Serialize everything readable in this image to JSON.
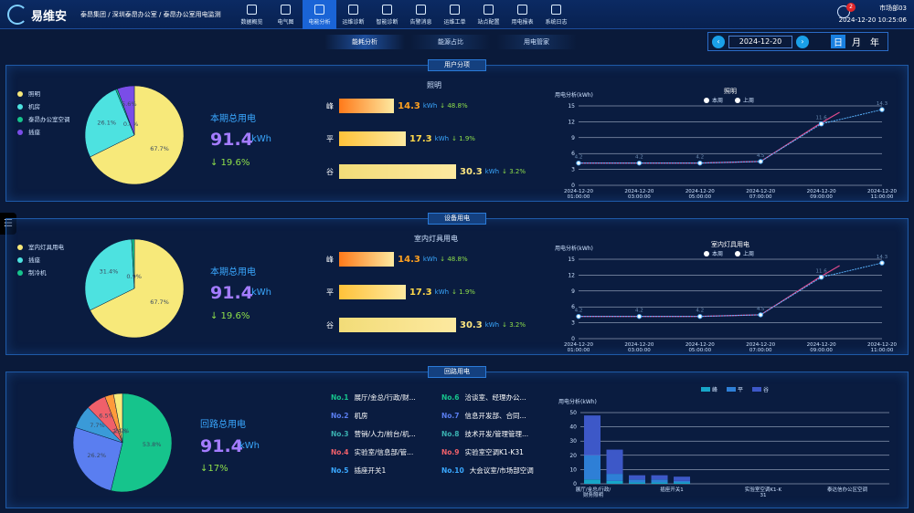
{
  "app": {
    "title": "易维安",
    "breadcrumb": "泰昂集团 / 深圳泰昂办公室 / 泰昂办公室用电监测",
    "user": "市场部03",
    "time": "2024-12-20 10:25:06",
    "badge": "2"
  },
  "nav": [
    {
      "label": "数据概览"
    },
    {
      "label": "电气图"
    },
    {
      "label": "电能分析",
      "active": true
    },
    {
      "label": "运维诊断"
    },
    {
      "label": "智能诊断"
    },
    {
      "label": "告警消息"
    },
    {
      "label": "运维工单"
    },
    {
      "label": "站点配置"
    },
    {
      "label": "用电报表"
    },
    {
      "label": "系统日志"
    }
  ],
  "subtabs": [
    {
      "label": "能耗分析",
      "active": true
    },
    {
      "label": "能源占比"
    },
    {
      "label": "用电管家"
    }
  ],
  "date": {
    "value": "2024-12-20",
    "prev": "‹",
    "next": "›",
    "day": "日",
    "month": "月",
    "year": "年"
  },
  "sidebar_toggle": "☰",
  "panels": [
    {
      "title": "用户分项",
      "legend": [
        {
          "label": "照明",
          "color": "#f7e97a"
        },
        {
          "label": "机房",
          "color": "#4de2e0"
        },
        {
          "label": "泰昂办公室空调",
          "color": "#16c48c"
        },
        {
          "label": "插座",
          "color": "#7a4de8"
        }
      ],
      "pie": [
        {
          "value": 67.7,
          "label": "67.7%",
          "color": "#f7e97a"
        },
        {
          "value": 26.1,
          "label": "26.1%",
          "color": "#4de2e0"
        },
        {
          "value": 0.6,
          "label": "0.6%",
          "color": "#16c48c"
        },
        {
          "value": 5.6,
          "label": "5.6%",
          "color": "#7a4de8"
        }
      ],
      "total_label": "本期总用电",
      "total_value": "91.4",
      "total_unit": "kWh",
      "total_change": "↓ 19.6%",
      "bars_title": "照明",
      "bars": [
        {
          "tag": "峰",
          "value": "14.3",
          "unit": "kWh",
          "change": "↓ 48.8%",
          "frac": 0.47,
          "color": "#ff7a1a",
          "vcolor": "#ffa020"
        },
        {
          "tag": "平",
          "value": "17.3",
          "unit": "kWh",
          "change": "↓ 1.9%",
          "frac": 0.57,
          "color": "#ffc23a",
          "vcolor": "#ffd84a"
        },
        {
          "tag": "谷",
          "value": "30.3",
          "unit": "kWh",
          "change": "↓ 3.2%",
          "frac": 1.0,
          "color": "#f2dc78",
          "vcolor": "#ffe680"
        }
      ],
      "chart_data": {
        "type": "line",
        "title": "照明",
        "ylabel": "用电分析(kWh)",
        "ylim": [
          0,
          15
        ],
        "yticks": [
          0,
          3,
          6,
          9,
          12,
          15
        ],
        "x": [
          "2024-12-20 01:00:00",
          "2024-12-20 03:00:00",
          "2024-12-20 05:00:00",
          "2024-12-20 07:00:00",
          "2024-12-20 09:00:00",
          "2024-12-20 11:00:00"
        ],
        "series": [
          {
            "name": "本周",
            "values": [
              4.2,
              4.2,
              4.2,
              4.5,
              11.6,
              14.3
            ],
            "color": "#e04a8c"
          },
          {
            "name": "上周",
            "values": [
              4.2,
              4.2,
              4.2,
              4.5,
              11.6,
              14.3
            ],
            "color": "#5ab4ff"
          }
        ],
        "point_labels": [
          "4.2",
          "4.2",
          "4.2",
          "4.5",
          "11.6",
          "14.3"
        ]
      }
    },
    {
      "title": "设备用电",
      "legend": [
        {
          "label": "室内灯具用电",
          "color": "#f7e97a"
        },
        {
          "label": "插座",
          "color": "#4de2e0"
        },
        {
          "label": "制冷机",
          "color": "#16c48c"
        }
      ],
      "pie": [
        {
          "value": 67.7,
          "label": "67.7%",
          "color": "#f7e97a"
        },
        {
          "value": 31.4,
          "label": "31.4%",
          "color": "#4de2e0"
        },
        {
          "value": 0.9,
          "label": "0.9%",
          "color": "#16c48c"
        }
      ],
      "total_label": "本期总用电",
      "total_value": "91.4",
      "total_unit": "kWh",
      "total_change": "↓ 19.6%",
      "bars_title": "室内灯具用电",
      "bars": [
        {
          "tag": "峰",
          "value": "14.3",
          "unit": "kWh",
          "change": "↓ 48.8%",
          "frac": 0.47,
          "color": "#ff7a1a",
          "vcolor": "#ffa020"
        },
        {
          "tag": "平",
          "value": "17.3",
          "unit": "kWh",
          "change": "↓ 1.9%",
          "frac": 0.57,
          "color": "#ffc23a",
          "vcolor": "#ffd84a"
        },
        {
          "tag": "谷",
          "value": "30.3",
          "unit": "kWh",
          "change": "↓ 3.2%",
          "frac": 1.0,
          "color": "#f2dc78",
          "vcolor": "#ffe680"
        }
      ],
      "chart_data": {
        "type": "line",
        "title": "室内灯具用电",
        "ylabel": "用电分析(kWh)",
        "ylim": [
          0,
          15
        ],
        "yticks": [
          0,
          3,
          6,
          9,
          12,
          15
        ],
        "x": [
          "2024-12-20 01:00:00",
          "2024-12-20 03:00:00",
          "2024-12-20 05:00:00",
          "2024-12-20 07:00:00",
          "2024-12-20 09:00:00",
          "2024-12-20 11:00:00"
        ],
        "series": [
          {
            "name": "本周",
            "values": [
              4.2,
              4.2,
              4.2,
              4.5,
              11.6,
              14.3
            ],
            "color": "#e04a8c"
          },
          {
            "name": "上周",
            "values": [
              4.2,
              4.2,
              4.2,
              4.5,
              11.6,
              14.3
            ],
            "color": "#5ab4ff"
          }
        ],
        "point_labels": [
          "4.2",
          "4.2",
          "4.2",
          "4.5",
          "11.6",
          "14.3"
        ]
      }
    },
    {
      "title": "回路用电",
      "pie": [
        {
          "value": 53.8,
          "label": "53.8%",
          "color": "#16c48c"
        },
        {
          "value": 26.2,
          "label": "26.2%",
          "color": "#5a7ef0"
        },
        {
          "value": 7.7,
          "label": "7.7%",
          "color": "#3a9ad8"
        },
        {
          "value": 6.5,
          "label": "6.5%",
          "color": "#f0606a"
        },
        {
          "value": 2.9,
          "label": "2.9%",
          "color": "#ff9a3a"
        },
        {
          "value": 2.9,
          "label": "2.9%",
          "color": "#f7e97a"
        }
      ],
      "total_label": "回路总用电",
      "total_value": "91.4",
      "total_unit": "kWh",
      "total_change": "↓17%",
      "circuits": [
        {
          "no": "No.1",
          "name": "展厅/金总/行政/财...",
          "color": "#16c48c"
        },
        {
          "no": "No.2",
          "name": "机房",
          "color": "#5a7ef0"
        },
        {
          "no": "No.3",
          "name": "营销/人力/前台/机...",
          "color": "#3ab0b0"
        },
        {
          "no": "No.4",
          "name": "实验室/信息部/管...",
          "color": "#f0606a"
        },
        {
          "no": "No.5",
          "name": "插座开关1",
          "color": "#3aa8ff"
        },
        {
          "no": "No.6",
          "name": "洽谈室、经理办公...",
          "color": "#16c48c"
        },
        {
          "no": "No.7",
          "name": "信息开发部、合同...",
          "color": "#5a7ef0"
        },
        {
          "no": "No.8",
          "name": "技术开发/管理管理...",
          "color": "#3ab0b0"
        },
        {
          "no": "No.9",
          "name": "实验室空调K1-K31",
          "color": "#f0606a"
        },
        {
          "no": "No.10",
          "name": "大会议室/市场部空调",
          "color": "#3aa8ff"
        }
      ],
      "chart_data": {
        "type": "bar",
        "ylabel": "用电分析(kWh)",
        "ylim": [
          0,
          50
        ],
        "yticks": [
          0,
          10,
          20,
          30,
          40,
          50
        ],
        "categories": [
          "展厅/金总/行政/财务照明",
          "",
          "插座开关1",
          "",
          "实验室空调K1-K31",
          "",
          "泰达信办公区空调",
          ""
        ],
        "x_labels": [
          "展厅/金总/行政/财务照明",
          "插座开关1",
          "实验室空调K1-K31",
          "泰达信办公区空调"
        ],
        "series": [
          {
            "name": "峰",
            "values": [
              3,
              2,
              1,
              1,
              1,
              0,
              0,
              0
            ],
            "color": "#17a6c8"
          },
          {
            "name": "平",
            "values": [
              17,
              5,
              2,
              2,
              1,
              0,
              0,
              0
            ],
            "color": "#2e7fd6"
          },
          {
            "name": "谷",
            "values": [
              28,
              17,
              3,
              3,
              3,
              0,
              0,
              0
            ],
            "color": "#3d58c8"
          }
        ]
      }
    }
  ]
}
